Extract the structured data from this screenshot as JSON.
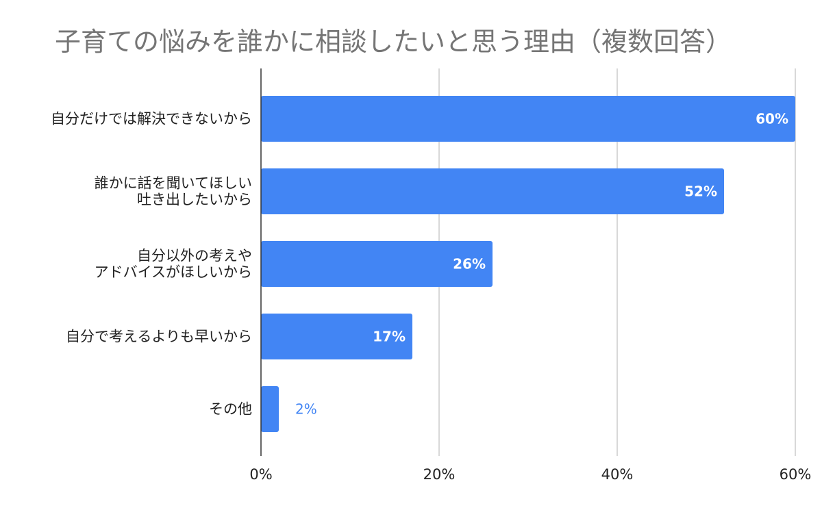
{
  "chart_data": {
    "type": "bar",
    "orientation": "horizontal",
    "title": "子育ての悩みを誰かに相談したいと思う理由（複数回答）",
    "categories": [
      [
        "自分だけでは解決できないから"
      ],
      [
        "誰かに話を聞いてほしい",
        "吐き出したいから"
      ],
      [
        "自分以外の考えや",
        "アドバイスがほしいから"
      ],
      [
        "自分で考えるよりも早いから"
      ],
      [
        "その他"
      ]
    ],
    "values": [
      60,
      52,
      26,
      17,
      2
    ],
    "value_labels": [
      "60%",
      "52%",
      "26%",
      "17%",
      "2%"
    ],
    "xlim": [
      0,
      60
    ],
    "xticks": [
      0,
      20,
      40,
      60
    ],
    "xtick_labels": [
      "0%",
      "20%",
      "40%",
      "60%"
    ],
    "grid": true,
    "bar_color": "#4285f4"
  }
}
